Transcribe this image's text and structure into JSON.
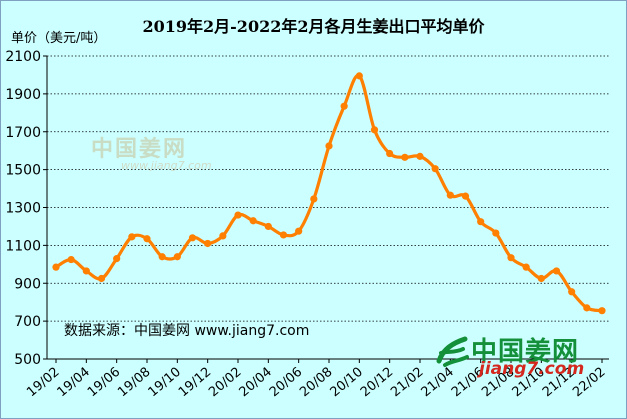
{
  "chart_data": {
    "type": "line",
    "title": "2019年2月-2022年2月各月生姜出口平均单价",
    "ylabel": "单价（美元/吨）",
    "xlabel": "",
    "ylim": [
      500,
      2100
    ],
    "yticks": [
      500,
      700,
      900,
      1100,
      1300,
      1500,
      1700,
      1900,
      2100
    ],
    "grid": "horizontal dotted",
    "line_color": "#ff7f00",
    "x": [
      "19/02",
      "19/03",
      "19/04",
      "19/05",
      "19/06",
      "19/07",
      "19/08",
      "19/09",
      "19/10",
      "19/11",
      "19/12",
      "20/01",
      "20/02",
      "20/03",
      "20/04",
      "20/05",
      "20/06",
      "20/07",
      "20/08",
      "20/09",
      "20/10",
      "20/11",
      "20/12",
      "21/01",
      "21/02",
      "21/03",
      "21/04",
      "21/05",
      "21/06",
      "21/07",
      "21/08",
      "21/09",
      "21/10",
      "21/11",
      "21/12",
      "22/01",
      "22/02"
    ],
    "x_tick_labels": [
      "19/02",
      "19/04",
      "19/06",
      "19/08",
      "19/10",
      "19/12",
      "20/02",
      "20/04",
      "20/06",
      "20/08",
      "20/10",
      "20/12",
      "21/02",
      "21/04",
      "21/06",
      "21/08",
      "21/10",
      "21/12",
      "22/02"
    ],
    "values": [
      985,
      1025,
      965,
      925,
      1030,
      1145,
      1135,
      1040,
      1040,
      1140,
      1110,
      1150,
      1260,
      1230,
      1200,
      1155,
      1175,
      1345,
      1625,
      1835,
      1995,
      1710,
      1585,
      1565,
      1570,
      1505,
      1365,
      1360,
      1225,
      1165,
      1035,
      985,
      925,
      965,
      855,
      770,
      755
    ]
  },
  "source_text": "数据来源：中国姜网 www.jiang7.com",
  "watermark": {
    "brand": "中国姜网",
    "url": "www.jiang7.com"
  },
  "logo": {
    "brand": "中国姜网",
    "url": "jiang7.com"
  }
}
